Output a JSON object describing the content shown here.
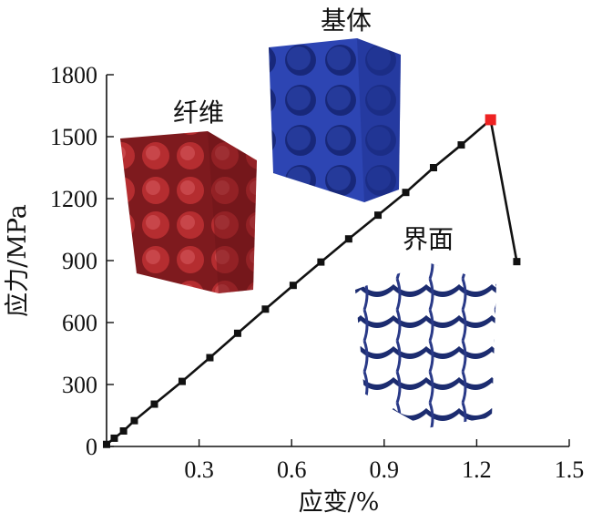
{
  "chart_data": {
    "type": "line",
    "xlabel": "应变/%",
    "ylabel": "应力/MPa",
    "xlim": [
      0,
      1.5
    ],
    "ylim": [
      0,
      1800
    ],
    "xticks": [
      "0.3",
      "0.6",
      "0.9",
      "1.2",
      "1.5"
    ],
    "yticks": [
      "0",
      "300",
      "600",
      "900",
      "1200",
      "1500",
      "1800"
    ],
    "grid": false,
    "series": [
      {
        "x": [
          0.0,
          0.025,
          0.055,
          0.09,
          0.155,
          0.245,
          0.335,
          0.425,
          0.515,
          0.605,
          0.695,
          0.785,
          0.88,
          0.97,
          1.06,
          1.15,
          1.245,
          1.33
        ],
        "y": [
          10,
          40,
          75,
          125,
          205,
          315,
          430,
          548,
          665,
          780,
          893,
          1005,
          1120,
          1230,
          1350,
          1460,
          1582,
          895
        ],
        "color": "#111111",
        "peak_color": "#ee2222"
      }
    ],
    "annotations": [
      {
        "text": "基体",
        "color": "#2d45b3"
      },
      {
        "text": "纤维",
        "color": "#a8252a"
      },
      {
        "text": "界面",
        "color": "#1c2c70"
      }
    ]
  }
}
